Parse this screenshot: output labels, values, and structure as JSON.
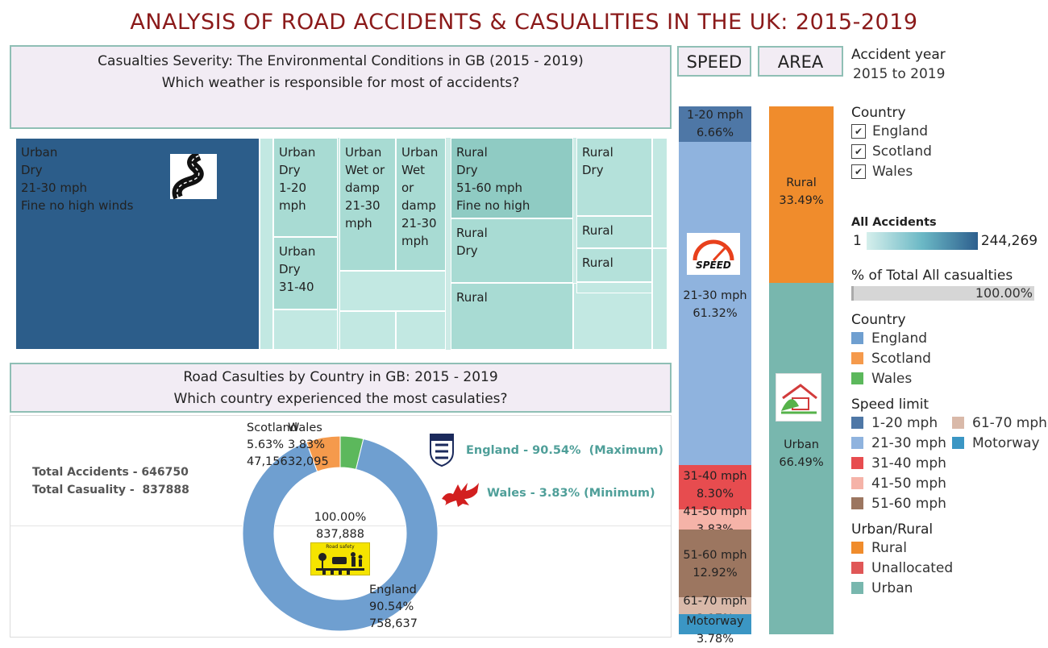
{
  "title": "ANALYSIS OF ROAD ACCIDENTS & CASUALITIES IN THE UK: 2015-2019",
  "treemap_panel": {
    "line1": "Casualties Severity: The Environmental Conditions in GB (2015 - 2019)",
    "line2": "Which weather is responsible for most of accidents?"
  },
  "donut_panel": {
    "line1": "Road Casulties by Country in GB: 2015 - 2019",
    "line2": "Which country experienced the most casulaties?"
  },
  "totals": {
    "accidents": "Total Accidents - 646750",
    "casualty": "Total Casuality -  837888"
  },
  "callouts": {
    "max": "England - 90.54%  (Maximum)",
    "min": "Wales - 3.83% (Minimum)"
  },
  "headers": {
    "speed": "SPEED",
    "area": "AREA"
  },
  "speed_icon_text": "SPEED",
  "road_safety_text": "Road safety",
  "legend": {
    "accident_year_title": "Accident year",
    "accident_year_value": "2015 to 2019",
    "country_filter_title": "Country",
    "country_filter_items": [
      "England",
      "Scotland",
      "Wales"
    ],
    "all_accidents_title": "All Accidents",
    "all_accidents_min": "1",
    "all_accidents_max": "244,269",
    "pct_total_title": "% of Total All casualties",
    "pct_total_value": "100.00%",
    "pct_total_fraction": 1.0,
    "country_title": "Country",
    "country_items": [
      {
        "label": "England",
        "color": "#6f9fd0"
      },
      {
        "label": "Scotland",
        "color": "#f59a4c"
      },
      {
        "label": "Wales",
        "color": "#5cb85c"
      }
    ],
    "speed_title": "Speed limit",
    "speed_items": [
      {
        "label": "1-20 mph",
        "color": "#4e77a6"
      },
      {
        "label": "61-70 mph",
        "color": "#d9b9a9"
      },
      {
        "label": "21-30 mph",
        "color": "#8fb3de"
      },
      {
        "label": "Motorway",
        "color": "#3b96c4"
      },
      {
        "label": "31-40 mph",
        "color": "#e74c4f"
      },
      {
        "label": "",
        "color": ""
      },
      {
        "label": "41-50 mph",
        "color": "#f5b3a8"
      },
      {
        "label": "",
        "color": ""
      },
      {
        "label": "51-60 mph",
        "color": "#9c7660"
      },
      {
        "label": "",
        "color": ""
      }
    ],
    "area_title": "Urban/Rural",
    "area_items": [
      {
        "label": "Rural",
        "color": "#f08c2c"
      },
      {
        "label": "Unallocated",
        "color": "#e05757"
      },
      {
        "label": "Urban",
        "color": "#78b7ae"
      }
    ]
  },
  "chart_data": [
    {
      "type": "treemap",
      "labeled_cells": [
        {
          "text": "Urban\nDry\n21-30 mph\nFine no high winds",
          "color": "#2c5d8a"
        },
        {
          "text": "Urban\nDry\n1-20\nmph",
          "color": "#a8dbd3"
        },
        {
          "text": "Urban\nDry\n31-40",
          "color": "#a8dbd3"
        },
        {
          "text": "Urban\nWet or\ndamp\n21-30\nmph",
          "color": "#a8dbd3"
        },
        {
          "text": "Urban\nWet\nor\ndamp\n21-30\nmph",
          "color": "#a8dbd3"
        },
        {
          "text": "Rural\nDry\n51-60 mph\nFine no high",
          "color": "#8fcbc3"
        },
        {
          "text": "Rural\nDry",
          "color": "#b4e1da"
        },
        {
          "text": "Rural\nDry",
          "color": "#a8dbd3"
        },
        {
          "text": "Rural",
          "color": "#b4e1da"
        },
        {
          "text": "Rural",
          "color": "#b4e1da"
        },
        {
          "text": "Rural",
          "color": "#a8dbd3"
        }
      ]
    },
    {
      "type": "pie",
      "variant": "donut",
      "center_pct": "100.00%",
      "center_value": "837,888",
      "slices": [
        {
          "name": "England",
          "pct_label": "90.54%",
          "value_label": "758,637",
          "value": 758637,
          "color": "#6f9fd0"
        },
        {
          "name": "Scotland",
          "pct_label": "5.63%",
          "value_label": "47,156",
          "value": 47156,
          "color": "#f59a4c"
        },
        {
          "name": "Wales",
          "pct_label": "3.83%",
          "value_label": "32,095",
          "value": 32095,
          "color": "#5cb85c"
        }
      ]
    },
    {
      "type": "bar",
      "variant": "stacked-100",
      "name": "SPEED",
      "segments": [
        {
          "category": "1-20 mph",
          "pct": 6.66,
          "label": "6.66%",
          "color": "#4e77a6"
        },
        {
          "category": "21-30 mph",
          "pct": 61.32,
          "label": "61.32%",
          "color": "#8fb3de"
        },
        {
          "category": "31-40 mph",
          "pct": 8.3,
          "label": "8.30%",
          "color": "#e74c4f"
        },
        {
          "category": "41-50 mph",
          "pct": 3.83,
          "label": "3.83%",
          "color": "#f5b3a8"
        },
        {
          "category": "51-60 mph",
          "pct": 12.92,
          "label": "12.92%",
          "color": "#9c7660"
        },
        {
          "category": "61-70 mph",
          "pct": 3.17,
          "label": "3.17%",
          "color": "#d9b9a9"
        },
        {
          "category": "Motorway",
          "pct": 3.78,
          "label": "3.78%",
          "color": "#3b96c4"
        }
      ]
    },
    {
      "type": "bar",
      "variant": "stacked-100",
      "name": "AREA",
      "segments": [
        {
          "category": "Rural",
          "pct": 33.49,
          "label": "33.49%",
          "color": "#f08c2c"
        },
        {
          "category": "Urban",
          "pct": 66.49,
          "label": "66.49%",
          "color": "#78b7ae"
        }
      ]
    }
  ]
}
